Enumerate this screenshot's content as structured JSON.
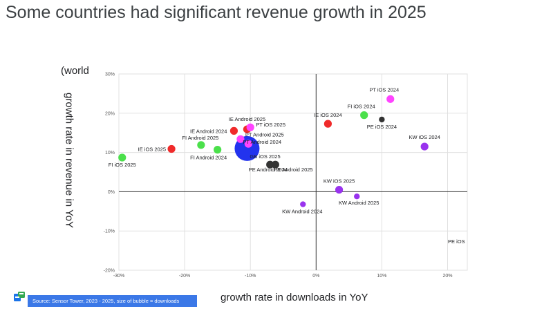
{
  "title": "Some countries had significant revenue growth in 2025",
  "side_note": "(world",
  "source_text": "Source: Sensor Tower, 2023 - 2025, size of bubble = downloads",
  "logo_icon": "google-slides-logo-icon",
  "chart_data": {
    "type": "scatter",
    "title": "",
    "xlabel": "growth rate in downloads in YoY",
    "ylabel": "growth rate in revenue in YoY",
    "xlim": [
      -30,
      23
    ],
    "ylim": [
      -20,
      30
    ],
    "x_ticks": [
      -30,
      -20,
      -10,
      0,
      10,
      20
    ],
    "x_tick_labels": [
      "-30%",
      "-20%",
      "-10%",
      "0%",
      "10%",
      "20%"
    ],
    "y_ticks": [
      30,
      20,
      10,
      0,
      -10,
      -20
    ],
    "y_tick_labels": [
      "30%",
      "20%",
      "10%",
      "0%",
      "-10%",
      "-20%"
    ],
    "grid": true,
    "points": [
      {
        "label": "FI iOS 2025",
        "x": -29.5,
        "y": 8.7,
        "color": "#4be04b",
        "size": "small"
      },
      {
        "label": "IE iOS 2025",
        "x": -22.0,
        "y": 10.9,
        "color": "#f02a2a",
        "size": "small"
      },
      {
        "label": "FI Android 2025",
        "x": -17.5,
        "y": 11.9,
        "color": "#4be04b",
        "size": "small"
      },
      {
        "label": "FI Android 2024",
        "x": -15.0,
        "y": 10.7,
        "color": "#4be04b",
        "size": "small"
      },
      {
        "label": "IE Android 2024",
        "x": -12.5,
        "y": 15.5,
        "color": "#f02a2a",
        "size": "small"
      },
      {
        "label": "IE Android 2025",
        "x": -10.5,
        "y": 15.9,
        "color": "#f02a2a",
        "size": "small"
      },
      {
        "label": "PT iOS 2025",
        "x": -10.0,
        "y": 16.4,
        "color": "#ff44ff",
        "size": "small"
      },
      {
        "label": "PT Android 2025",
        "x": -11.5,
        "y": 13.4,
        "color": "#ff44ff",
        "size": "small"
      },
      {
        "label": "PT Android 2024",
        "x": -10.3,
        "y": 12.2,
        "color": "#ff44ff",
        "size": "small"
      },
      {
        "label": "GB iOS 2025",
        "x": -10.5,
        "y": 11.0,
        "color": "#2233ee",
        "size": "large"
      },
      {
        "label": "PE Android 2024",
        "x": -7.0,
        "y": 6.9,
        "color": "#333333",
        "size": "small"
      },
      {
        "label": "PE Android 2025",
        "x": -6.2,
        "y": 6.9,
        "color": "#333333",
        "size": "small"
      },
      {
        "label": "IE iOS 2024",
        "x": 1.8,
        "y": 17.3,
        "color": "#f02a2a",
        "size": "small"
      },
      {
        "label": "FI iOS 2024",
        "x": 7.3,
        "y": 19.5,
        "color": "#4be04b",
        "size": "small"
      },
      {
        "label": "PE iOS 2024",
        "x": 10.0,
        "y": 18.4,
        "color": "#333333",
        "size": "tiny"
      },
      {
        "label": "PT iOS 2024",
        "x": 11.3,
        "y": 23.6,
        "color": "#ff44ff",
        "size": "small"
      },
      {
        "label": "KW iOS 2024",
        "x": 16.5,
        "y": 11.5,
        "color": "#9933ee",
        "size": "small"
      },
      {
        "label": "KW iOS 2025",
        "x": 3.5,
        "y": 0.5,
        "color": "#9933ee",
        "size": "small"
      },
      {
        "label": "KW Android 2025",
        "x": 6.2,
        "y": -1.2,
        "color": "#9933ee",
        "size": "tiny"
      },
      {
        "label": "KW Android 2024",
        "x": -2.0,
        "y": -3.2,
        "color": "#9933ee",
        "size": "tiny"
      },
      {
        "label": "PE iOS",
        "x": null,
        "y": null,
        "color": "",
        "size": ""
      }
    ]
  }
}
